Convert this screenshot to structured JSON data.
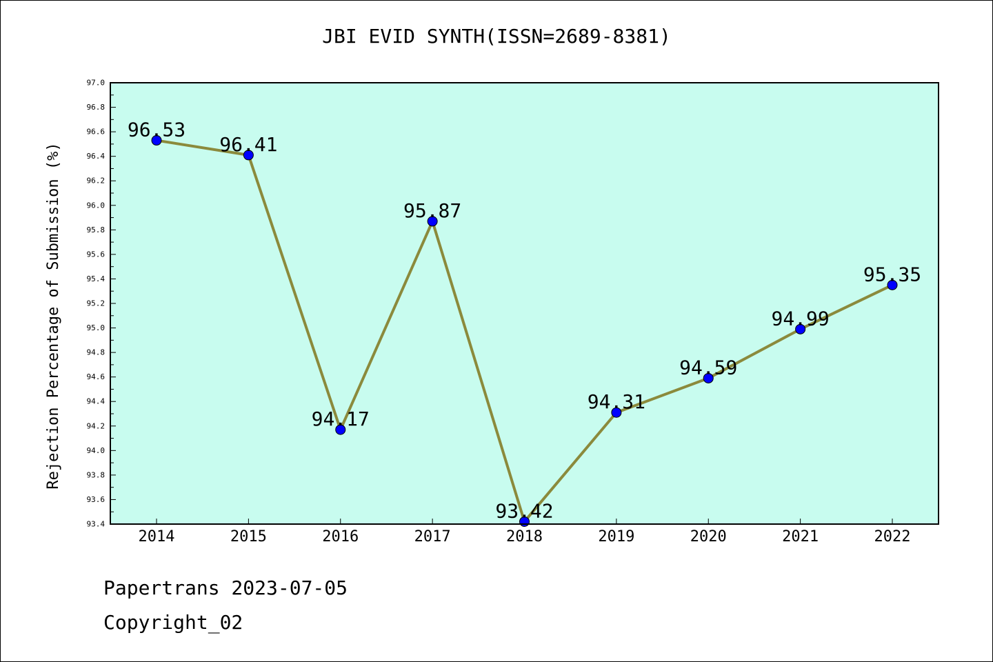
{
  "chart_data": {
    "type": "line",
    "title": "JBI EVID SYNTH(ISSN=2689-8381)",
    "xlabel": "",
    "ylabel": "Rejection Percentage of Submission (%)",
    "categories": [
      "2014",
      "2015",
      "2016",
      "2017",
      "2018",
      "2019",
      "2020",
      "2021",
      "2022"
    ],
    "values": [
      96.53,
      96.41,
      94.17,
      95.87,
      93.42,
      94.31,
      94.59,
      94.99,
      95.35
    ],
    "value_labels": [
      "96.53",
      "96.41",
      "94.17",
      "95.87",
      "93.42",
      "94.31",
      "94.59",
      "94.99",
      "95.35"
    ],
    "ylim": [
      93.4,
      97.0
    ],
    "yticks": [
      "93.4",
      "93.6",
      "93.8",
      "94.0",
      "94.2",
      "94.4",
      "94.6",
      "94.8",
      "95.0",
      "95.2",
      "95.4",
      "95.6",
      "95.8",
      "96.0",
      "96.2",
      "96.4",
      "96.6",
      "96.8",
      "97.0"
    ],
    "grid": false,
    "colors": {
      "plot_background": "#c8fcef",
      "line": "#8b8a3c",
      "marker": "#0000ff"
    }
  },
  "footer": {
    "line1": "Papertrans 2023-07-05",
    "line2": "Copyright_02"
  }
}
